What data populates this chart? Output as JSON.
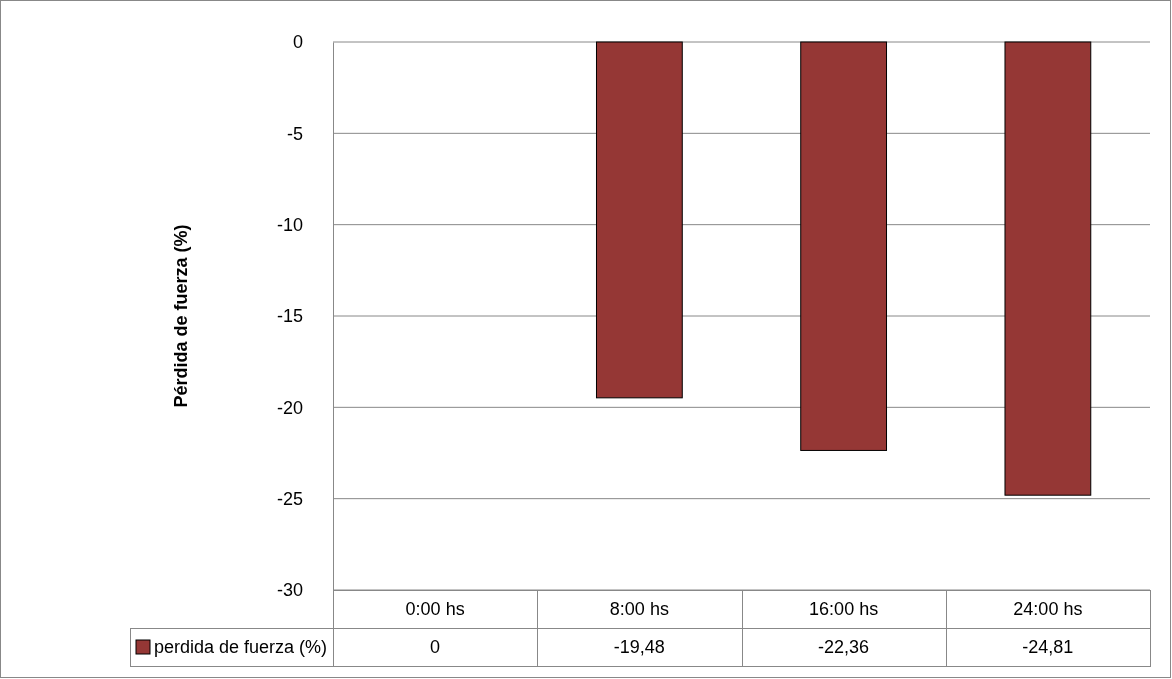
{
  "chart_data": {
    "type": "bar",
    "ylabel": "Pérdida de fuerza (%)",
    "categories": [
      "0:00 hs",
      "8:00 hs",
      "16:00 hs",
      "24:00 hs"
    ],
    "series": [
      {
        "name": "perdida de fuerza (%)",
        "color": "#953735",
        "values": [
          0,
          -19.48,
          -22.36,
          -24.81
        ],
        "value_labels": [
          "0",
          "-19,48",
          "-22,36",
          "-24,81"
        ]
      }
    ],
    "ylim": [
      -30,
      0
    ],
    "yticks": [
      -30,
      -25,
      -20,
      -15,
      -10,
      -5,
      0
    ],
    "grid": "y",
    "legend": "bottom"
  }
}
